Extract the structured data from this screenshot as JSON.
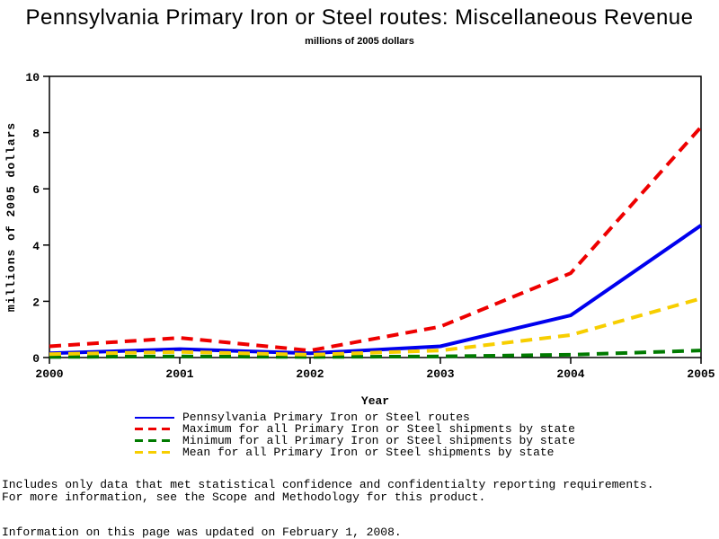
{
  "title": "Pennsylvania Primary Iron or Steel routes: Miscellaneous Revenue",
  "subtitle": "millions of 2005 dollars",
  "chart_data": {
    "type": "line",
    "x": [
      2000,
      2001,
      2002,
      2003,
      2004,
      2005
    ],
    "xlabel": "Year",
    "ylabel": "millions of 2005 dollars",
    "ylim": [
      0,
      10
    ],
    "yticks": [
      0,
      2,
      4,
      6,
      8,
      10
    ],
    "grid": false,
    "legend_position": "bottom",
    "series": [
      {
        "name": "Pennsylvania Primary Iron or Steel routes",
        "color": "#0000EE",
        "dash": "solid",
        "values": [
          0.15,
          0.3,
          0.15,
          0.4,
          1.5,
          4.7
        ]
      },
      {
        "name": "Maximum for all Primary Iron or Steel shipments by state",
        "color": "#EE0000",
        "dash": "dashed",
        "values": [
          0.4,
          0.7,
          0.25,
          1.1,
          3.0,
          8.2
        ]
      },
      {
        "name": "Minimum for all Primary Iron or Steel shipments by state",
        "color": "#007A00",
        "dash": "dashed",
        "values": [
          0.02,
          0.04,
          0.02,
          0.04,
          0.1,
          0.25
        ]
      },
      {
        "name": "Mean for all Primary Iron or Steel shipments by state",
        "color": "#F7CE00",
        "dash": "dashed",
        "values": [
          0.12,
          0.2,
          0.1,
          0.25,
          0.8,
          2.1
        ]
      }
    ]
  },
  "notes": [
    "Includes only data that met statistical confidence and confidentialty reporting requirements.",
    "For more information, see the Scope and Methodology for this product."
  ],
  "updated": "Information on this page was updated on February 1, 2008."
}
